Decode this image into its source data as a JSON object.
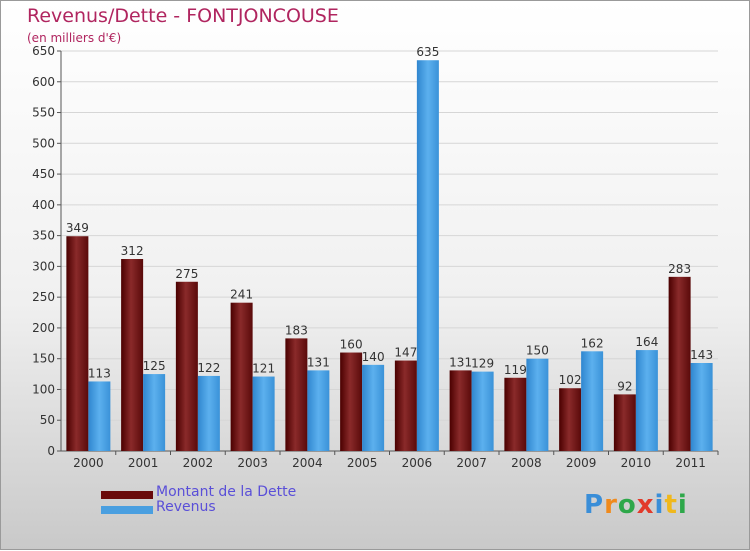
{
  "chart_data": {
    "type": "bar",
    "title": "Revenus/Dette - FONTJONCOUSE",
    "subtitle": "(en milliers d'€)",
    "categories": [
      "2000",
      "2001",
      "2002",
      "2003",
      "2004",
      "2005",
      "2006",
      "2007",
      "2008",
      "2009",
      "2010",
      "2011"
    ],
    "series": [
      {
        "name": "Montant de la Dette",
        "color": "#7a1a1a",
        "values": [
          349,
          312,
          275,
          241,
          183,
          160,
          147,
          131,
          119,
          102,
          92,
          283
        ]
      },
      {
        "name": "Revenus",
        "color": "#4a9fe0",
        "values": [
          113,
          125,
          122,
          121,
          131,
          140,
          635,
          129,
          150,
          162,
          164,
          143
        ]
      }
    ],
    "ylim": [
      0,
      650
    ],
    "yticks": [
      0,
      50,
      100,
      150,
      200,
      250,
      300,
      350,
      400,
      450,
      500,
      550,
      600,
      650
    ],
    "grid": true,
    "legend": "bottom-left"
  },
  "logo": {
    "text": "Proxiti",
    "letters": [
      {
        "ch": "P",
        "color": "#3a8ed8"
      },
      {
        "ch": "r",
        "color": "#f08a1c"
      },
      {
        "ch": "o",
        "color": "#2ea84a"
      },
      {
        "ch": "x",
        "color": "#e23a2a"
      },
      {
        "ch": "i",
        "color": "#3a8ed8"
      },
      {
        "ch": "t",
        "color": "#f0b81c"
      },
      {
        "ch": "i",
        "color": "#2ea84a"
      }
    ]
  }
}
